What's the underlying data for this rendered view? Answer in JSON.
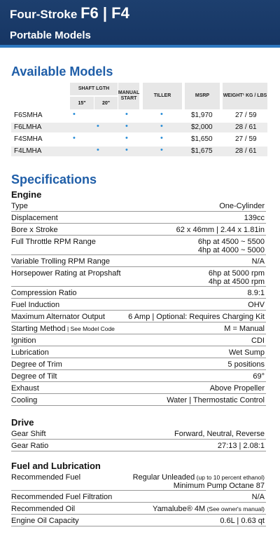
{
  "header": {
    "prefix": "Four-Stroke",
    "models": "F6 | F4",
    "subtitle": "Portable Models"
  },
  "available": {
    "title": "Available Models",
    "columns": {
      "shaft": "SHAFT LGTH",
      "shaft15": "15\"",
      "shaft20": "20\"",
      "manual": "MANUAL START",
      "tiller": "TILLER",
      "msrp": "MSRP",
      "weight": "WEIGHT¹ KG / LBS"
    },
    "rows": [
      {
        "model": "F6SMHA",
        "s15": "•",
        "s20": "",
        "manual": "•",
        "tiller": "•",
        "msrp": "$1,970",
        "weight": "27 / 59"
      },
      {
        "model": "F6LMHA",
        "s15": "",
        "s20": "•",
        "manual": "•",
        "tiller": "•",
        "msrp": "$2,000",
        "weight": "28 / 61"
      },
      {
        "model": "F4SMHA",
        "s15": "•",
        "s20": "",
        "manual": "•",
        "tiller": "•",
        "msrp": "$1,650",
        "weight": "27 / 59"
      },
      {
        "model": "F4LMHA",
        "s15": "",
        "s20": "•",
        "manual": "•",
        "tiller": "•",
        "msrp": "$1,675",
        "weight": "28 / 61"
      }
    ]
  },
  "specs": {
    "title": "Specifications",
    "engine_title": "Engine",
    "engine": [
      {
        "label": "Type",
        "value": "One-Cylinder"
      },
      {
        "label": "Displacement",
        "value": "139cc"
      },
      {
        "label": "Bore x Stroke",
        "value": "62 x 46mm | 2.44 x 1.81in"
      },
      {
        "label": "Full Throttle RPM Range",
        "value": "6hp at 4500 ~ 5500",
        "value2": "4hp at 4000 ~ 5000"
      },
      {
        "label": "Variable Trolling RPM Range",
        "value": "N/A"
      },
      {
        "label": "Horsepower Rating at Propshaft",
        "value": "6hp at 5000 rpm",
        "value2": "4hp at 4500 rpm"
      },
      {
        "label": "Compression Ratio",
        "value": "8.9:1"
      },
      {
        "label": "Fuel Induction",
        "value": "OHV"
      },
      {
        "label": "Maximum Alternator Output",
        "value": "6 Amp | Optional: Requires Charging Kit"
      },
      {
        "label": "Starting Method",
        "label_small": " | See Model Code",
        "value": "M = Manual"
      },
      {
        "label": "Ignition",
        "value": "CDI"
      },
      {
        "label": "Lubrication",
        "value": "Wet Sump"
      },
      {
        "label": "Degree of Trim",
        "value": "5 positions"
      },
      {
        "label": "Degree of Tilt",
        "value": "69°"
      },
      {
        "label": "Exhaust",
        "value": "Above Propeller"
      },
      {
        "label": "Cooling",
        "value": "Water | Thermostatic Control"
      }
    ],
    "drive_title": "Drive",
    "drive": [
      {
        "label": "Gear Shift",
        "value": "Forward, Neutral, Reverse"
      },
      {
        "label": "Gear Ratio",
        "value": "27:13 | 2.08:1"
      }
    ],
    "fuel_title": "Fuel and Lubrication",
    "fuel": [
      {
        "label": "Recommended Fuel",
        "value": "Regular Unleaded",
        "value_small": " (up to 10 percent ethanol)",
        "value2": "Minimum Pump Octane 87"
      },
      {
        "label": "Recommended Fuel Filtration",
        "value": "N/A"
      },
      {
        "label": "Recommended Oil",
        "value": "Yamalube® 4M",
        "value_small": " (See owner's manual)"
      },
      {
        "label": "Engine Oil Capacity",
        "value": "0.6L | 0.63 qt"
      }
    ]
  }
}
